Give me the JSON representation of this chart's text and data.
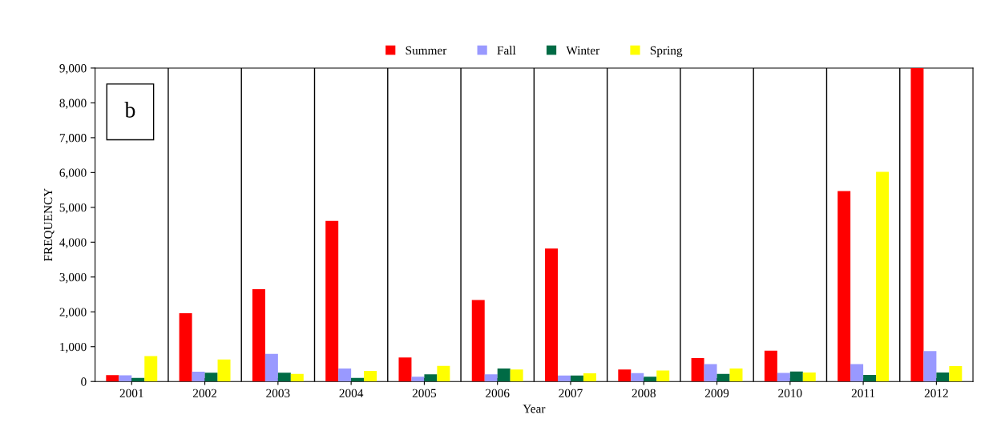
{
  "chart_data": {
    "type": "bar",
    "xlabel": "Year",
    "ylabel": "FREQUENCY",
    "categories": [
      "2001",
      "2002",
      "2003",
      "2004",
      "2005",
      "2006",
      "2007",
      "2008",
      "2009",
      "2010",
      "2011",
      "2012"
    ],
    "series": [
      {
        "name": "Summer",
        "color": "#ff0000",
        "values": [
          185,
          1960,
          2650,
          4610,
          690,
          2340,
          3820,
          345,
          670,
          885,
          5470,
          9000
        ]
      },
      {
        "name": "Fall",
        "color": "#9999ff",
        "values": [
          180,
          280,
          790,
          375,
          140,
          205,
          170,
          240,
          500,
          245,
          500,
          875
        ]
      },
      {
        "name": "Winter",
        "color": "#006b45",
        "values": [
          100,
          250,
          250,
          100,
          205,
          375,
          170,
          140,
          220,
          285,
          190,
          260
        ]
      },
      {
        "name": "Spring",
        "color": "#ffff00",
        "values": [
          730,
          630,
          215,
          305,
          450,
          345,
          235,
          315,
          375,
          260,
          6020,
          440
        ]
      }
    ],
    "ylim": [
      0,
      9000
    ],
    "yticks": [
      {
        "value": 0,
        "label": "0"
      },
      {
        "value": 1000,
        "label": "1,000"
      },
      {
        "value": 2000,
        "label": "2,000"
      },
      {
        "value": 3000,
        "label": "3,000"
      },
      {
        "value": 4000,
        "label": "4,000"
      },
      {
        "value": 5000,
        "label": "5,000"
      },
      {
        "value": 6000,
        "label": "6,000"
      },
      {
        "value": 7000,
        "label": "7,000"
      },
      {
        "value": 8000,
        "label": "8,000"
      },
      {
        "value": 9000,
        "label": "9,000"
      }
    ],
    "grid": "x",
    "legend": "top",
    "annotations": [
      "b"
    ]
  }
}
